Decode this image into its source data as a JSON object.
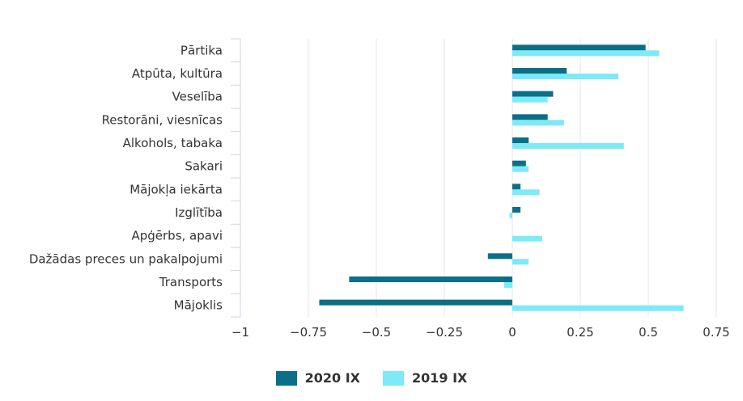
{
  "chart_data": {
    "type": "bar",
    "orientation": "horizontal",
    "categories": [
      "Pārtika",
      "Atpūta, kultūra",
      "Veselība",
      "Restorāni, viesnīcas",
      "Alkohols, tabaka",
      "Sakari",
      "Mājokļa iekārta",
      "Izglītība",
      "Apģērbs, apavi",
      "Dažādas preces un pakalpojumi",
      "Transports",
      "Mājoklis"
    ],
    "series": [
      {
        "name": "2020 IX",
        "color": "#0b6f88",
        "values": [
          0.49,
          0.2,
          0.15,
          0.13,
          0.06,
          0.05,
          0.03,
          0.03,
          0.0,
          -0.09,
          -0.6,
          -0.71
        ]
      },
      {
        "name": "2019 IX",
        "color": "#7ee9f7",
        "values": [
          0.54,
          0.39,
          0.13,
          0.19,
          0.41,
          0.06,
          0.1,
          -0.01,
          0.11,
          0.06,
          -0.03,
          0.63
        ]
      }
    ],
    "xlim": [
      -1,
      0.75
    ],
    "ticks": [
      -1,
      -0.75,
      -0.5,
      -0.25,
      0,
      0.25,
      0.5,
      0.75
    ],
    "tick_labels": [
      "−1",
      "−0.75",
      "−0.5",
      "−0.25",
      "0",
      "0.25",
      "0.5",
      "0.75"
    ],
    "grid": true,
    "legend_position": "bottom-center"
  }
}
